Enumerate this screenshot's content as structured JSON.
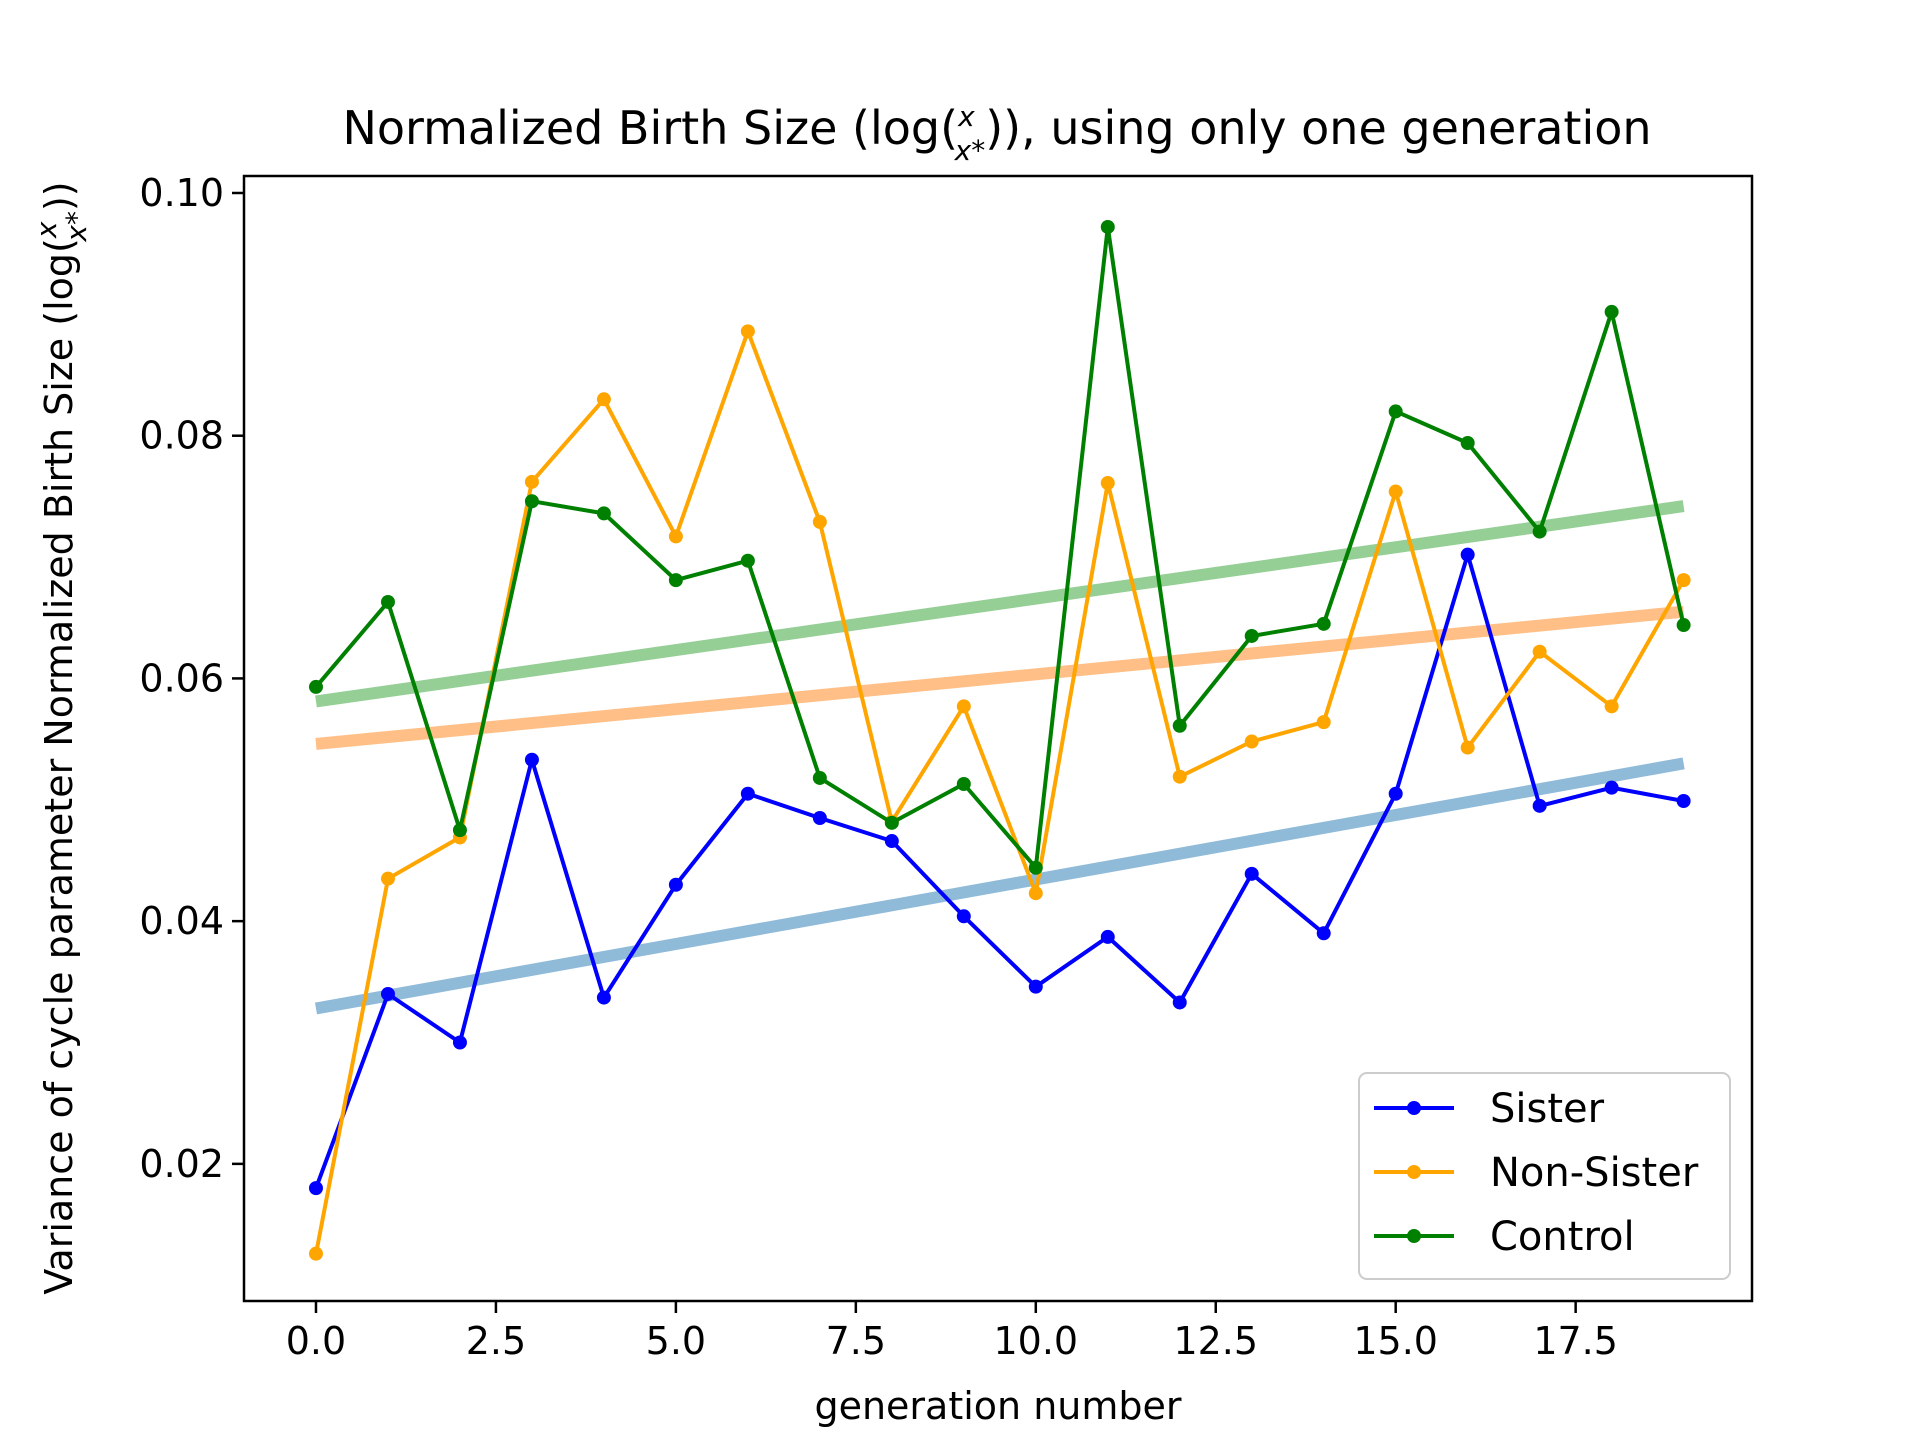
{
  "chart_data": {
    "type": "line",
    "title": {
      "prefix": "Normalized Birth Size (log(",
      "frac_num": "x",
      "frac_den": "x*",
      "suffix": ")), using only one generation"
    },
    "xlabel": "generation number",
    "ylabel": {
      "prefix": "Variance of cycle parameter Normalized Birth Size (log(",
      "frac_num": "x",
      "frac_den": "x*",
      "suffix": "))"
    },
    "xlim": [
      -1.0,
      19.95
    ],
    "ylim": [
      0.0087,
      0.1014
    ],
    "x_ticks": [
      0.0,
      2.5,
      5.0,
      7.5,
      10.0,
      12.5,
      15.0,
      17.5
    ],
    "x_tick_labels": [
      "0.0",
      "2.5",
      "5.0",
      "7.5",
      "10.0",
      "12.5",
      "15.0",
      "17.5"
    ],
    "y_ticks": [
      0.02,
      0.04,
      0.06,
      0.08,
      0.1
    ],
    "y_tick_labels": [
      "0.02",
      "0.04",
      "0.06",
      "0.08",
      "0.10"
    ],
    "grid": false,
    "legend_position": "lower-right",
    "x": [
      0,
      1,
      2,
      3,
      4,
      5,
      6,
      7,
      8,
      9,
      10,
      11,
      12,
      13,
      14,
      15,
      16,
      17,
      18,
      19
    ],
    "series": [
      {
        "name": "Sister",
        "color": "#0000ff",
        "values": [
          0.018,
          0.034,
          0.03,
          0.0533,
          0.0337,
          0.043,
          0.0505,
          0.0485,
          0.0466,
          0.0404,
          0.0346,
          0.0387,
          0.0333,
          0.0439,
          0.039,
          0.0505,
          0.0702,
          0.0495,
          0.051,
          0.0499
        ]
      },
      {
        "name": "Non-Sister",
        "color": "#ffa500",
        "values": [
          0.0126,
          0.0435,
          0.0469,
          0.0762,
          0.083,
          0.0717,
          0.0886,
          0.0729,
          0.0482,
          0.0577,
          0.0423,
          0.0761,
          0.0519,
          0.0548,
          0.0564,
          0.0754,
          0.0543,
          0.0622,
          0.0577,
          0.0681
        ]
      },
      {
        "name": "Control",
        "color": "#008000",
        "values": [
          0.0593,
          0.0663,
          0.0475,
          0.0746,
          0.0736,
          0.0681,
          0.0697,
          0.0518,
          0.0481,
          0.0513,
          0.0444,
          0.0972,
          0.0561,
          0.0635,
          0.0645,
          0.082,
          0.0794,
          0.0721,
          0.0902,
          0.0644
        ]
      }
    ],
    "trend_lines": [
      {
        "series": "Sister",
        "color": "#1f77b4",
        "y_start": 0.0328,
        "y_end": 0.053
      },
      {
        "series": "Non-Sister",
        "color": "#ff7f0e",
        "y_start": 0.0546,
        "y_end": 0.0655
      },
      {
        "series": "Control",
        "color": "#2ca02c",
        "y_start": 0.0581,
        "y_end": 0.0742
      }
    ]
  }
}
